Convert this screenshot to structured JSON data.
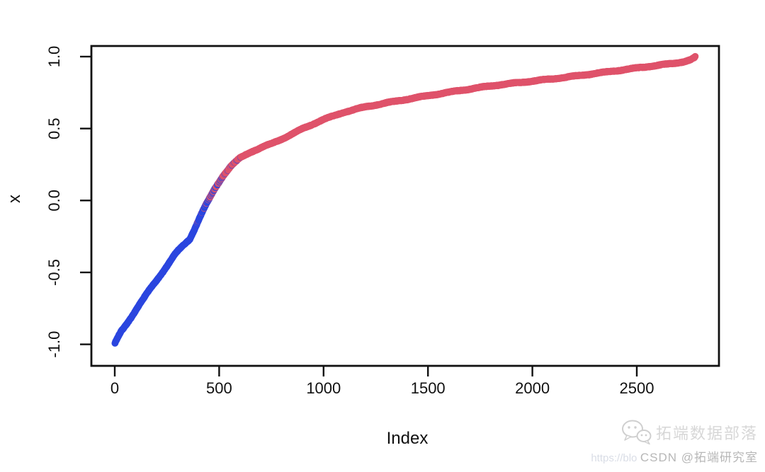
{
  "chart_data": {
    "type": "scatter",
    "title": "",
    "xlabel": "Index",
    "ylabel": "x",
    "x_ticks": {
      "values": [
        0,
        500,
        1000,
        1500,
        2000,
        2500
      ],
      "labels": [
        "0",
        "500",
        "1000",
        "1500",
        "2000",
        "2500"
      ]
    },
    "y_ticks": {
      "values": [
        -1.0,
        -0.5,
        0.0,
        0.5,
        1.0
      ],
      "labels": [
        "-1.0",
        "-0.5",
        "0.0",
        "0.5",
        "1.0"
      ]
    },
    "xlim": [
      -110,
      2890
    ],
    "ylim": [
      -1.15,
      1.09
    ],
    "grid": false,
    "legend": null,
    "n_points": 2780,
    "description": "sorted values from -1 to 1 plotted against index, points colored by 2-cluster assignment (blue = low cluster, red = high cluster, interleaved near the boundary)",
    "control_points": [
      [
        0,
        -1.0
      ],
      [
        30,
        -0.915
      ],
      [
        70,
        -0.83
      ],
      [
        100,
        -0.765
      ],
      [
        140,
        -0.685
      ],
      [
        180,
        -0.6
      ],
      [
        220,
        -0.515
      ],
      [
        250,
        -0.455
      ],
      [
        290,
        -0.375
      ],
      [
        320,
        -0.325
      ],
      [
        360,
        -0.26
      ],
      [
        400,
        -0.135
      ],
      [
        440,
        -0.02
      ],
      [
        480,
        0.085
      ],
      [
        520,
        0.175
      ],
      [
        560,
        0.245
      ],
      [
        600,
        0.295
      ],
      [
        650,
        0.335
      ],
      [
        700,
        0.365
      ],
      [
        760,
        0.4
      ],
      [
        820,
        0.44
      ],
      [
        900,
        0.5
      ],
      [
        1000,
        0.565
      ],
      [
        1100,
        0.615
      ],
      [
        1200,
        0.65
      ],
      [
        1350,
        0.69
      ],
      [
        1500,
        0.73
      ],
      [
        1650,
        0.765
      ],
      [
        1800,
        0.795
      ],
      [
        2000,
        0.83
      ],
      [
        2200,
        0.865
      ],
      [
        2400,
        0.9
      ],
      [
        2500,
        0.92
      ],
      [
        2600,
        0.94
      ],
      [
        2680,
        0.955
      ],
      [
        2730,
        0.968
      ],
      [
        2760,
        0.98
      ],
      [
        2775,
        0.992
      ],
      [
        2780,
        1.0
      ]
    ],
    "colors": {
      "cluster_red": "#DF536B",
      "cluster_blue": "#2B46DF",
      "axis": "#111111"
    },
    "color_rule": {
      "solid_blue_below": -0.31,
      "solid_red_above": 0.37
    }
  },
  "watermark": {
    "brand": "拓端数据部落",
    "url_fragment": "https://blo",
    "csdn_label": "CSDN @拓端研究室"
  }
}
